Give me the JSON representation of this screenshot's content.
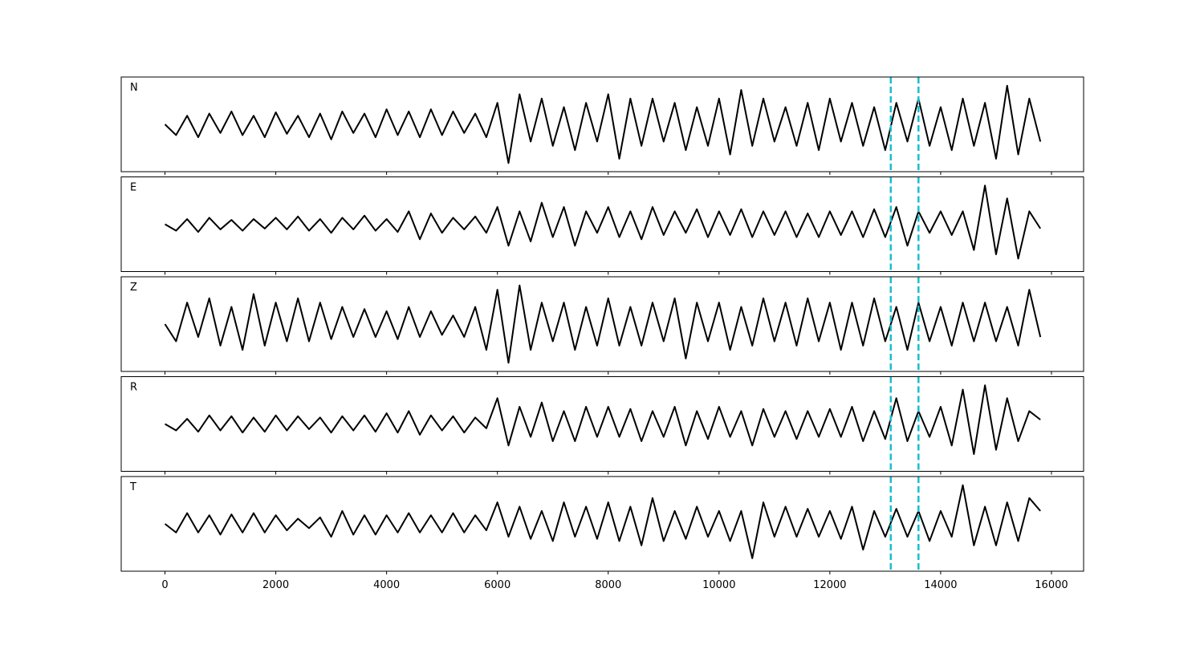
{
  "chart_data": {
    "type": "line",
    "x": [
      0,
      200,
      400,
      600,
      800,
      1000,
      1200,
      1400,
      1600,
      1800,
      2000,
      2200,
      2400,
      2600,
      2800,
      3000,
      3200,
      3400,
      3600,
      3800,
      4000,
      4200,
      4400,
      4600,
      4800,
      5000,
      5200,
      5400,
      5600,
      5800,
      6000,
      6200,
      6400,
      6600,
      6800,
      7000,
      7200,
      7400,
      7600,
      7800,
      8000,
      8200,
      8400,
      8600,
      8800,
      9000,
      9200,
      9400,
      9600,
      9800,
      10000,
      10200,
      10400,
      10600,
      10800,
      11000,
      11200,
      11400,
      11600,
      11800,
      12000,
      12200,
      12400,
      12600,
      12800,
      13000,
      13200,
      13400,
      13600,
      13800,
      14000,
      14200,
      14400,
      14600,
      14800,
      15000,
      15200,
      15400,
      15600,
      15800
    ],
    "xlim": [
      -790,
      16580
    ],
    "xticks": [
      0,
      2000,
      4000,
      6000,
      8000,
      10000,
      12000,
      14000,
      16000
    ],
    "ylim": [
      -1.1,
      1.1
    ],
    "series": [
      {
        "name": "N",
        "color": "#000000",
        "values": [
          0.0,
          -0.25,
          0.2,
          -0.3,
          0.25,
          -0.2,
          0.3,
          -0.25,
          0.2,
          -0.3,
          0.28,
          -0.22,
          0.2,
          -0.3,
          0.25,
          -0.35,
          0.3,
          -0.2,
          0.25,
          -0.3,
          0.35,
          -0.25,
          0.3,
          -0.3,
          0.35,
          -0.25,
          0.3,
          -0.2,
          0.25,
          -0.3,
          0.5,
          -0.9,
          0.7,
          -0.4,
          0.6,
          -0.5,
          0.4,
          -0.6,
          0.5,
          -0.4,
          0.7,
          -0.8,
          0.6,
          -0.5,
          0.6,
          -0.4,
          0.5,
          -0.6,
          0.4,
          -0.5,
          0.6,
          -0.7,
          0.8,
          -0.5,
          0.6,
          -0.4,
          0.4,
          -0.5,
          0.5,
          -0.6,
          0.6,
          -0.4,
          0.5,
          -0.5,
          0.4,
          -0.6,
          0.5,
          -0.4,
          0.6,
          -0.5,
          0.4,
          -0.6,
          0.6,
          -0.5,
          0.5,
          -0.8,
          0.9,
          -0.7,
          0.6,
          -0.4
        ]
      },
      {
        "name": "E",
        "color": "#000000",
        "values": [
          0.0,
          -0.15,
          0.12,
          -0.18,
          0.15,
          -0.12,
          0.1,
          -0.15,
          0.12,
          -0.1,
          0.15,
          -0.12,
          0.18,
          -0.15,
          0.12,
          -0.2,
          0.15,
          -0.12,
          0.2,
          -0.15,
          0.12,
          -0.18,
          0.3,
          -0.35,
          0.25,
          -0.2,
          0.15,
          -0.12,
          0.18,
          -0.2,
          0.4,
          -0.5,
          0.3,
          -0.4,
          0.5,
          -0.3,
          0.4,
          -0.5,
          0.3,
          -0.2,
          0.4,
          -0.3,
          0.3,
          -0.35,
          0.4,
          -0.25,
          0.3,
          -0.2,
          0.35,
          -0.3,
          0.3,
          -0.25,
          0.35,
          -0.3,
          0.3,
          -0.25,
          0.3,
          -0.3,
          0.25,
          -0.3,
          0.3,
          -0.25,
          0.3,
          -0.3,
          0.35,
          -0.3,
          0.4,
          -0.5,
          0.3,
          -0.2,
          0.3,
          -0.25,
          0.3,
          -0.6,
          0.9,
          -0.7,
          0.6,
          -0.8,
          0.3,
          -0.1
        ]
      },
      {
        "name": "Z",
        "color": "#000000",
        "values": [
          0.0,
          -0.4,
          0.5,
          -0.3,
          0.6,
          -0.5,
          0.4,
          -0.6,
          0.7,
          -0.5,
          0.5,
          -0.4,
          0.6,
          -0.4,
          0.5,
          -0.35,
          0.4,
          -0.3,
          0.35,
          -0.3,
          0.3,
          -0.35,
          0.4,
          -0.3,
          0.3,
          -0.25,
          0.2,
          -0.3,
          0.4,
          -0.6,
          0.8,
          -0.9,
          0.9,
          -0.6,
          0.5,
          -0.4,
          0.5,
          -0.6,
          0.4,
          -0.5,
          0.6,
          -0.5,
          0.4,
          -0.5,
          0.5,
          -0.4,
          0.6,
          -0.8,
          0.5,
          -0.4,
          0.5,
          -0.6,
          0.4,
          -0.5,
          0.6,
          -0.4,
          0.5,
          -0.5,
          0.6,
          -0.4,
          0.5,
          -0.6,
          0.5,
          -0.5,
          0.6,
          -0.4,
          0.4,
          -0.6,
          0.5,
          -0.4,
          0.4,
          -0.5,
          0.5,
          -0.4,
          0.5,
          -0.4,
          0.4,
          -0.5,
          0.8,
          -0.3
        ]
      },
      {
        "name": "R",
        "color": "#000000",
        "values": [
          0.0,
          -0.15,
          0.12,
          -0.18,
          0.2,
          -0.15,
          0.18,
          -0.2,
          0.15,
          -0.18,
          0.2,
          -0.15,
          0.18,
          -0.12,
          0.15,
          -0.2,
          0.18,
          -0.15,
          0.2,
          -0.18,
          0.25,
          -0.2,
          0.3,
          -0.25,
          0.2,
          -0.15,
          0.18,
          -0.2,
          0.15,
          -0.1,
          0.6,
          -0.5,
          0.4,
          -0.3,
          0.5,
          -0.4,
          0.3,
          -0.4,
          0.4,
          -0.3,
          0.4,
          -0.3,
          0.35,
          -0.4,
          0.3,
          -0.3,
          0.4,
          -0.5,
          0.3,
          -0.35,
          0.4,
          -0.3,
          0.3,
          -0.5,
          0.35,
          -0.3,
          0.3,
          -0.35,
          0.3,
          -0.3,
          0.35,
          -0.3,
          0.4,
          -0.4,
          0.3,
          -0.35,
          0.6,
          -0.4,
          0.3,
          -0.3,
          0.4,
          -0.5,
          0.8,
          -0.7,
          0.9,
          -0.6,
          0.6,
          -0.4,
          0.3,
          0.1
        ]
      },
      {
        "name": "T",
        "color": "#000000",
        "values": [
          0.0,
          -0.2,
          0.25,
          -0.2,
          0.2,
          -0.25,
          0.22,
          -0.2,
          0.25,
          -0.2,
          0.2,
          -0.15,
          0.12,
          -0.1,
          0.15,
          -0.3,
          0.3,
          -0.25,
          0.2,
          -0.25,
          0.2,
          -0.2,
          0.25,
          -0.2,
          0.2,
          -0.2,
          0.25,
          -0.2,
          0.2,
          -0.15,
          0.5,
          -0.3,
          0.4,
          -0.35,
          0.3,
          -0.4,
          0.5,
          -0.3,
          0.4,
          -0.35,
          0.5,
          -0.4,
          0.4,
          -0.5,
          0.6,
          -0.4,
          0.3,
          -0.35,
          0.4,
          -0.3,
          0.3,
          -0.4,
          0.3,
          -0.8,
          0.5,
          -0.3,
          0.4,
          -0.3,
          0.35,
          -0.3,
          0.3,
          -0.35,
          0.4,
          -0.6,
          0.3,
          -0.3,
          0.35,
          -0.3,
          0.3,
          -0.4,
          0.3,
          -0.3,
          0.9,
          -0.5,
          0.4,
          -0.5,
          0.5,
          -0.4,
          0.6,
          0.3
        ]
      }
    ],
    "vlines": {
      "x": [
        13100,
        13600
      ],
      "color": "#17becf"
    }
  }
}
